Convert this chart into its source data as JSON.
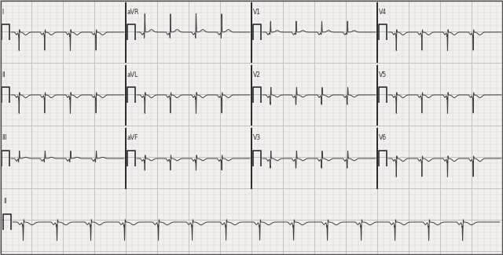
{
  "background_color": "#f0eeee",
  "grid_minor_color": "#d8d0d0",
  "grid_major_color": "#c0b8b8",
  "ecg_color": "#404040",
  "fig_width": 6.4,
  "fig_height": 3.25,
  "dpi": 100,
  "label_color": "#303030",
  "border_color": "#404040",
  "cal_pulse_color": "#303030",
  "row_labels_col0": [
    "I",
    "II",
    "III",
    "II"
  ],
  "row_labels_col1": [
    "aVR",
    "aVL",
    "aVF"
  ],
  "row_labels_col2": [
    "V1",
    "V2",
    "V3"
  ],
  "row_labels_col3": [
    "V4",
    "V5",
    "V6"
  ]
}
